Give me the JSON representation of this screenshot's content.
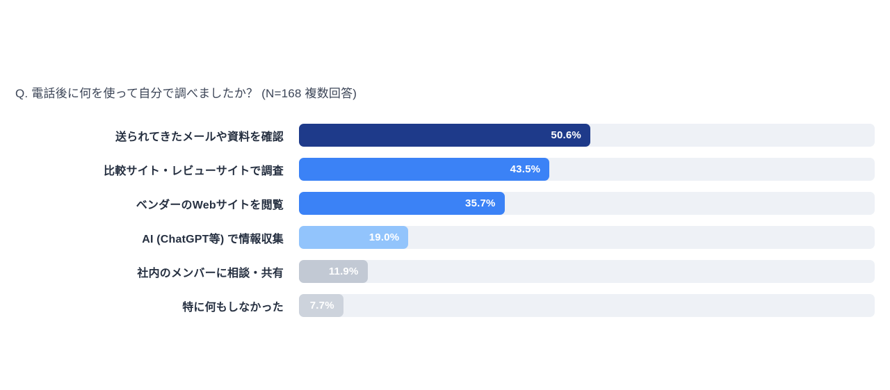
{
  "title": "Q. 電話後に何を使って自分で調べましたか？ (N=168 複数回答)",
  "chart_data": {
    "type": "bar",
    "orientation": "horizontal",
    "title": "Q. 電話後に何を使って自分で調べましたか？ (N=168 複数回答)",
    "sample_size": "N=168",
    "note": "複数回答",
    "xlim": [
      0,
      100
    ],
    "value_suffix": "%",
    "grid": false,
    "legend": "none",
    "categories": [
      "送られてきたメールや資料を確認",
      "比較サイト・レビューサイトで調査",
      "ベンダーのWebサイトを閲覧",
      "AI (ChatGPT等) で情報収集",
      "社内のメンバーに相談・共有",
      "特に何もしなかった"
    ],
    "values": [
      50.6,
      43.5,
      35.7,
      19.0,
      11.9,
      7.7
    ],
    "value_labels": [
      "50.6%",
      "43.5%",
      "35.7%",
      "19.0%",
      "11.9%",
      "7.7%"
    ],
    "bar_colors": [
      "#1e3a8a",
      "#3b82f6",
      "#3b82f6",
      "#92c4fc",
      "#c2c9d4",
      "#cdd3dc"
    ],
    "track_color": "#eef1f6",
    "value_label_color": "#ffffff"
  }
}
